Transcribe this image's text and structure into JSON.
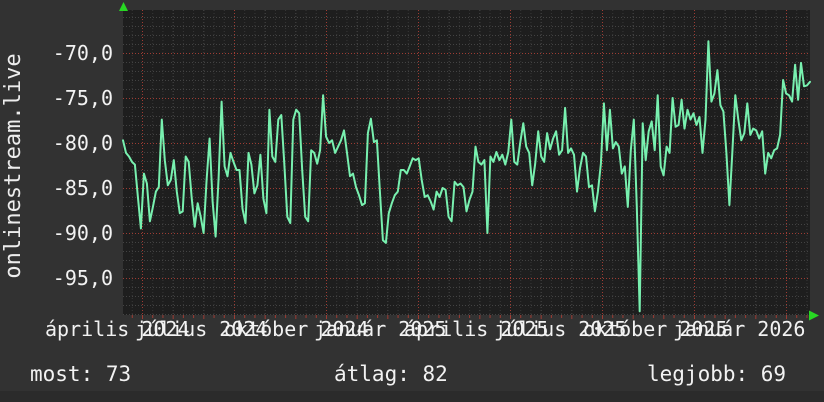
{
  "site_label": "onlinestream.live",
  "footer": {
    "most": "most: 73",
    "atlag": "átlag: 82",
    "legjobb": "legjobb: 69"
  },
  "colors": {
    "page_bg": "#323232",
    "plot_bg": "#1e1e1e",
    "grid_minor": "#383838",
    "grid_month": "#4a4a4a",
    "grid_horizontal": "#434343",
    "grid_red": "#9e3c33",
    "line": "#78f0af",
    "arrow": "#28d723",
    "text": "#f2f2f2",
    "bottom_bar": "#2b2b2b"
  },
  "chart_data": {
    "type": "line",
    "title": "onlinestream.live",
    "xlabel": "",
    "ylabel": "",
    "grid": true,
    "legend_position": "none",
    "ylim": [
      -99.1,
      -65.2
    ],
    "y_axis": {
      "tick_values": [
        -70,
        -75,
        -80,
        -85,
        -90,
        -95
      ],
      "tick_labels": [
        "-70,0",
        "-75,0",
        "-80,0",
        "-85,0",
        "-90,0",
        "-95,0"
      ]
    },
    "x_axis": {
      "labels": [
        "április 2024",
        "július 2024",
        "október 2024",
        "január 2025",
        "április 2025",
        "július 2025",
        "október 2025",
        "január 2026"
      ],
      "minor_grid": "10 days",
      "major_grid": "3 months"
    },
    "stats": {
      "most": 73,
      "atlag": 82,
      "legjobb": 69
    },
    "series": [
      {
        "values": [
          -79.7,
          -81.1,
          -81.5,
          -82.1,
          -82.4,
          -86.0,
          -89.5,
          -83.4,
          -84.5,
          -88.7,
          -87.1,
          -85.4,
          -84.9,
          -77.4,
          -81.9,
          -84.7,
          -84.1,
          -81.9,
          -85.4,
          -87.8,
          -87.6,
          -81.5,
          -82.1,
          -86.1,
          -89.3,
          -86.7,
          -88.2,
          -90.0,
          -84.1,
          -79.5,
          -86.5,
          -90.4,
          -83.9,
          -75.4,
          -82.6,
          -83.7,
          -81.1,
          -82.1,
          -83.0,
          -83.0,
          -87.3,
          -88.9,
          -81.1,
          -82.4,
          -85.6,
          -84.7,
          -81.3,
          -86.2,
          -87.8,
          -76.3,
          -81.5,
          -82.1,
          -77.4,
          -76.9,
          -82.3,
          -88.2,
          -88.9,
          -77.4,
          -76.3,
          -76.7,
          -83.0,
          -88.2,
          -88.7,
          -80.8,
          -81.1,
          -82.3,
          -80.8,
          -74.7,
          -79.3,
          -80.0,
          -79.7,
          -81.1,
          -80.4,
          -79.7,
          -78.6,
          -81.1,
          -83.7,
          -83.4,
          -84.9,
          -85.8,
          -86.9,
          -86.7,
          -78.9,
          -77.3,
          -79.9,
          -79.7,
          -85.4,
          -90.8,
          -91.1,
          -87.8,
          -86.7,
          -85.8,
          -85.4,
          -83.0,
          -83.0,
          -83.4,
          -82.6,
          -81.7,
          -81.9,
          -81.7,
          -84.1,
          -86.0,
          -85.8,
          -86.5,
          -87.4,
          -85.4,
          -86.0,
          -85.0,
          -85.2,
          -88.2,
          -88.7,
          -84.3,
          -84.7,
          -84.5,
          -84.9,
          -87.6,
          -86.3,
          -85.4,
          -80.4,
          -82.1,
          -82.4,
          -81.9,
          -90.0,
          -81.5,
          -82.1,
          -81.0,
          -81.9,
          -81.3,
          -82.4,
          -81.0,
          -77.4,
          -82.1,
          -82.4,
          -79.9,
          -77.8,
          -80.4,
          -81.1,
          -84.7,
          -82.3,
          -78.7,
          -81.5,
          -82.1,
          -78.9,
          -80.7,
          -79.5,
          -78.7,
          -81.3,
          -80.8,
          -76.1,
          -81.1,
          -80.6,
          -81.3,
          -85.4,
          -82.8,
          -81.1,
          -81.5,
          -84.9,
          -84.7,
          -87.6,
          -85.4,
          -82.3,
          -75.6,
          -80.8,
          -76.3,
          -80.6,
          -79.9,
          -80.4,
          -83.4,
          -82.6,
          -87.1,
          -80.8,
          -77.4,
          -87.1,
          -98.7,
          -77.8,
          -81.9,
          -78.7,
          -77.6,
          -80.8,
          -74.7,
          -82.6,
          -83.6,
          -80.4,
          -81.1,
          -75.0,
          -78.2,
          -78.0,
          -75.2,
          -78.4,
          -76.3,
          -77.4,
          -76.7,
          -78.0,
          -77.1,
          -81.1,
          -77.4,
          -68.7,
          -75.4,
          -74.5,
          -71.9,
          -75.8,
          -76.5,
          -81.1,
          -86.9,
          -81.1,
          -74.7,
          -77.4,
          -79.7,
          -78.9,
          -75.6,
          -79.1,
          -78.4,
          -78.6,
          -79.5,
          -78.7,
          -83.4,
          -81.1,
          -81.7,
          -80.8,
          -80.6,
          -79.1,
          -73.0,
          -74.5,
          -74.7,
          -75.4,
          -71.3,
          -75.2,
          -71.1,
          -73.7,
          -73.6,
          -73.2
        ]
      }
    ]
  }
}
